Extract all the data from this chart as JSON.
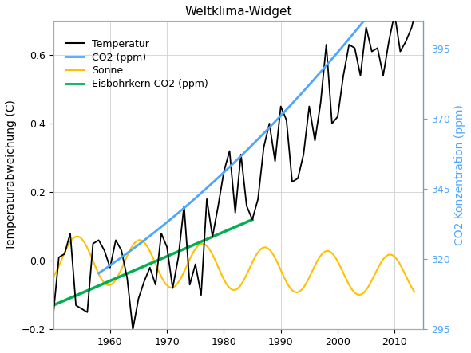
{
  "title": "Weltklima-Widget",
  "ylabel_left": "Temperaturabweichung (C)",
  "ylabel_right": "CO2 Konzentration (ppm)",
  "ylim_left": [
    -0.2,
    0.7
  ],
  "ylim_right": [
    295,
    405
  ],
  "xlim": [
    1950,
    2015
  ],
  "yticks_left": [
    -0.2,
    0.0,
    0.2,
    0.4,
    0.6
  ],
  "yticks_right": [
    295,
    320,
    345,
    370,
    395
  ],
  "xticks": [
    1960,
    1970,
    1980,
    1990,
    2000,
    2010
  ],
  "legend_entries": [
    "Temperatur",
    "CO2 (ppm)",
    "Sonne",
    "Eisbohrkern CO2 (ppm)"
  ],
  "line_colors": {
    "temp": "#000000",
    "co2": "#4da6ff",
    "sun": "#ffc000",
    "ice": "#00b050"
  },
  "background_color": "#ffffff",
  "grid_color": "#d0d0d0",
  "title_fontsize": 11,
  "axis_fontsize": 10,
  "legend_fontsize": 9,
  "tick_fontsize": 9
}
